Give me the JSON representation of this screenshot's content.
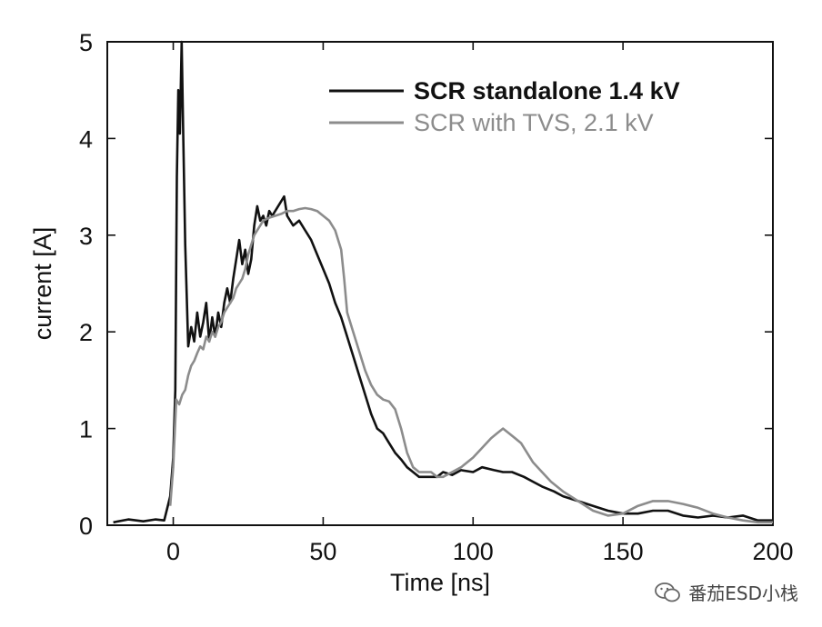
{
  "chart_data": {
    "type": "line",
    "xlabel": "Time [ns]",
    "ylabel": "current [A]",
    "xlim": [
      -22,
      200
    ],
    "ylim": [
      0,
      5
    ],
    "xticks": [
      0,
      50,
      100,
      150,
      200
    ],
    "yticks": [
      0,
      1,
      2,
      3,
      4,
      5
    ],
    "legend_position": "top-right",
    "series": [
      {
        "name": "SCR standalone 1.4 kV",
        "color": "#111111",
        "points": [
          [
            -20,
            0.03
          ],
          [
            -15,
            0.06
          ],
          [
            -10,
            0.04
          ],
          [
            -6,
            0.06
          ],
          [
            -3,
            0.05
          ],
          [
            -1,
            0.3
          ],
          [
            0,
            0.7
          ],
          [
            0.7,
            1.4
          ],
          [
            1.2,
            3.6
          ],
          [
            1.7,
            4.5
          ],
          [
            2.2,
            4.05
          ],
          [
            2.8,
            5.0
          ],
          [
            3.3,
            4.1
          ],
          [
            4,
            2.9
          ],
          [
            5,
            1.85
          ],
          [
            6,
            2.05
          ],
          [
            7,
            1.9
          ],
          [
            8,
            2.2
          ],
          [
            9,
            1.95
          ],
          [
            10,
            2.1
          ],
          [
            11,
            2.3
          ],
          [
            12,
            1.9
          ],
          [
            13,
            2.15
          ],
          [
            14,
            1.95
          ],
          [
            15,
            2.2
          ],
          [
            16,
            2.05
          ],
          [
            17,
            2.3
          ],
          [
            18,
            2.45
          ],
          [
            19,
            2.3
          ],
          [
            20,
            2.55
          ],
          [
            21,
            2.75
          ],
          [
            22,
            2.95
          ],
          [
            23,
            2.7
          ],
          [
            24,
            2.85
          ],
          [
            25,
            2.6
          ],
          [
            26,
            2.75
          ],
          [
            27,
            3.1
          ],
          [
            28,
            3.3
          ],
          [
            29,
            3.15
          ],
          [
            30,
            3.2
          ],
          [
            31,
            3.1
          ],
          [
            32,
            3.25
          ],
          [
            33,
            3.2
          ],
          [
            35,
            3.3
          ],
          [
            37,
            3.4
          ],
          [
            38,
            3.2
          ],
          [
            40,
            3.1
          ],
          [
            42,
            3.15
          ],
          [
            44,
            3.05
          ],
          [
            46,
            2.95
          ],
          [
            48,
            2.8
          ],
          [
            50,
            2.65
          ],
          [
            52,
            2.5
          ],
          [
            54,
            2.3
          ],
          [
            56,
            2.15
          ],
          [
            58,
            1.95
          ],
          [
            60,
            1.75
          ],
          [
            62,
            1.55
          ],
          [
            64,
            1.35
          ],
          [
            66,
            1.15
          ],
          [
            68,
            1.0
          ],
          [
            70,
            0.95
          ],
          [
            72,
            0.85
          ],
          [
            74,
            0.75
          ],
          [
            76,
            0.68
          ],
          [
            78,
            0.6
          ],
          [
            80,
            0.55
          ],
          [
            82,
            0.5
          ],
          [
            84,
            0.5
          ],
          [
            86,
            0.5
          ],
          [
            88,
            0.5
          ],
          [
            90,
            0.55
          ],
          [
            93,
            0.52
          ],
          [
            96,
            0.57
          ],
          [
            100,
            0.55
          ],
          [
            103,
            0.6
          ],
          [
            107,
            0.57
          ],
          [
            110,
            0.55
          ],
          [
            113,
            0.55
          ],
          [
            117,
            0.5
          ],
          [
            120,
            0.45
          ],
          [
            123,
            0.4
          ],
          [
            127,
            0.35
          ],
          [
            130,
            0.3
          ],
          [
            135,
            0.25
          ],
          [
            140,
            0.2
          ],
          [
            145,
            0.15
          ],
          [
            150,
            0.12
          ],
          [
            155,
            0.12
          ],
          [
            160,
            0.15
          ],
          [
            165,
            0.15
          ],
          [
            170,
            0.1
          ],
          [
            175,
            0.08
          ],
          [
            180,
            0.1
          ],
          [
            185,
            0.08
          ],
          [
            190,
            0.1
          ],
          [
            195,
            0.05
          ],
          [
            200,
            0.05
          ]
        ]
      },
      {
        "name": "SCR with TVS, 2.1 kV",
        "color": "#8c8c8c",
        "points": [
          [
            -1,
            0.2
          ],
          [
            0,
            0.6
          ],
          [
            1,
            1.3
          ],
          [
            2,
            1.25
          ],
          [
            3,
            1.35
          ],
          [
            4,
            1.4
          ],
          [
            5,
            1.55
          ],
          [
            6,
            1.65
          ],
          [
            7,
            1.7
          ],
          [
            8,
            1.78
          ],
          [
            9,
            1.85
          ],
          [
            10,
            1.82
          ],
          [
            11,
            1.95
          ],
          [
            12,
            1.9
          ],
          [
            13,
            2.0
          ],
          [
            14,
            1.95
          ],
          [
            15,
            2.05
          ],
          [
            16,
            2.1
          ],
          [
            17,
            2.2
          ],
          [
            18,
            2.25
          ],
          [
            19,
            2.3
          ],
          [
            20,
            2.35
          ],
          [
            21,
            2.45
          ],
          [
            22,
            2.5
          ],
          [
            23,
            2.55
          ],
          [
            24,
            2.65
          ],
          [
            25,
            2.8
          ],
          [
            26,
            2.9
          ],
          [
            27,
            3.0
          ],
          [
            28,
            3.05
          ],
          [
            29,
            3.1
          ],
          [
            30,
            3.15
          ],
          [
            32,
            3.18
          ],
          [
            34,
            3.2
          ],
          [
            36,
            3.22
          ],
          [
            38,
            3.25
          ],
          [
            40,
            3.25
          ],
          [
            42,
            3.27
          ],
          [
            44,
            3.28
          ],
          [
            46,
            3.27
          ],
          [
            48,
            3.25
          ],
          [
            50,
            3.2
          ],
          [
            52,
            3.15
          ],
          [
            54,
            3.05
          ],
          [
            56,
            2.85
          ],
          [
            57,
            2.55
          ],
          [
            58,
            2.2
          ],
          [
            60,
            2.0
          ],
          [
            62,
            1.8
          ],
          [
            64,
            1.6
          ],
          [
            66,
            1.45
          ],
          [
            68,
            1.35
          ],
          [
            70,
            1.3
          ],
          [
            72,
            1.28
          ],
          [
            74,
            1.2
          ],
          [
            76,
            1.0
          ],
          [
            78,
            0.75
          ],
          [
            80,
            0.6
          ],
          [
            82,
            0.55
          ],
          [
            84,
            0.55
          ],
          [
            86,
            0.55
          ],
          [
            88,
            0.5
          ],
          [
            90,
            0.5
          ],
          [
            93,
            0.55
          ],
          [
            96,
            0.6
          ],
          [
            100,
            0.7
          ],
          [
            103,
            0.8
          ],
          [
            106,
            0.9
          ],
          [
            108,
            0.95
          ],
          [
            110,
            1.0
          ],
          [
            112,
            0.95
          ],
          [
            114,
            0.9
          ],
          [
            116,
            0.85
          ],
          [
            118,
            0.75
          ],
          [
            120,
            0.65
          ],
          [
            123,
            0.55
          ],
          [
            126,
            0.45
          ],
          [
            130,
            0.35
          ],
          [
            135,
            0.25
          ],
          [
            140,
            0.15
          ],
          [
            145,
            0.1
          ],
          [
            150,
            0.12
          ],
          [
            155,
            0.2
          ],
          [
            160,
            0.25
          ],
          [
            165,
            0.25
          ],
          [
            170,
            0.22
          ],
          [
            175,
            0.18
          ],
          [
            180,
            0.12
          ],
          [
            185,
            0.08
          ],
          [
            190,
            0.05
          ],
          [
            195,
            0.03
          ],
          [
            200,
            0.03
          ]
        ]
      }
    ]
  },
  "watermark": {
    "text": "番茄ESD小栈",
    "icon": "wechat-icon"
  }
}
